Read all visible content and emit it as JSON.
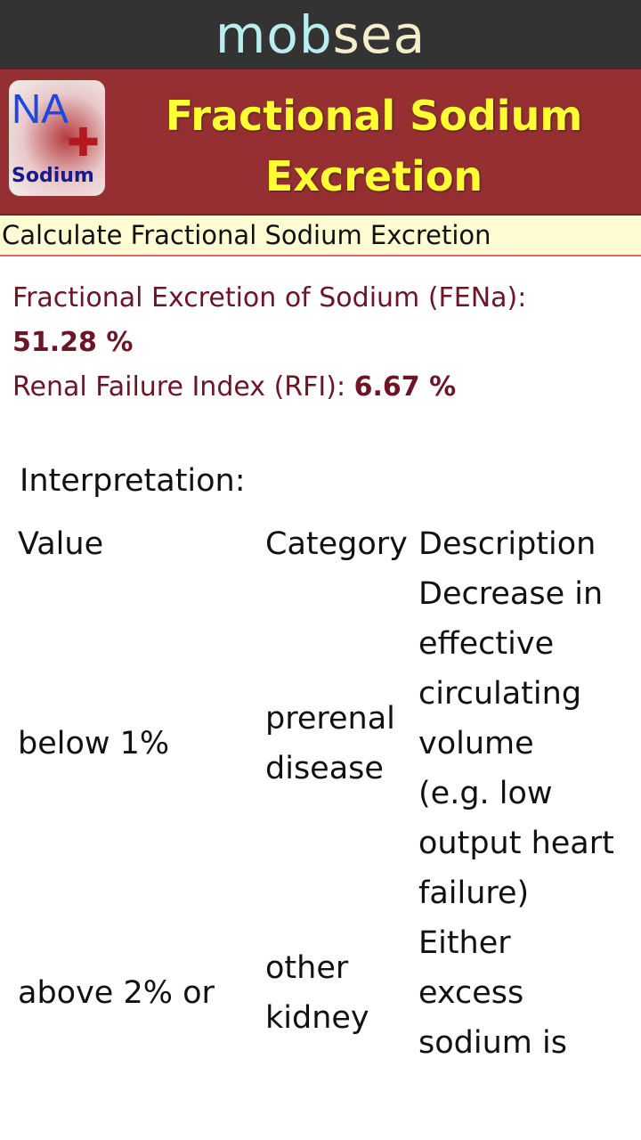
{
  "topbar": {
    "brand_part1": "mob",
    "brand_part2": "sea"
  },
  "header": {
    "logo": {
      "text_top": "NA",
      "text_bottom": "Sodium"
    },
    "title": "Fractional Sodium Excretion"
  },
  "subtitle": "Calculate Fractional Sodium Excretion",
  "results": {
    "fena_label": "Fractional Excretion of Sodium (FENa):",
    "fena_value": "51.28 %",
    "rfi_label": "Renal Failure Index (RFI):",
    "rfi_value": "6.67 %"
  },
  "interpretation": {
    "heading": "Interpretation:",
    "columns": [
      "Value",
      "Category",
      "Description"
    ],
    "rows": [
      {
        "value": "below 1%",
        "category": "prerenal disease",
        "description": "Decrease in effective circulating volume (e.g. low output heart failure)"
      },
      {
        "value": "above 2% or",
        "category": "other kidney",
        "description": "Either excess sodium is"
      }
    ]
  },
  "colors": {
    "header_bg": "#962f31",
    "title": "#ffff33",
    "result_text": "#6b1526",
    "subtitle_bg": "#fffcd4"
  }
}
